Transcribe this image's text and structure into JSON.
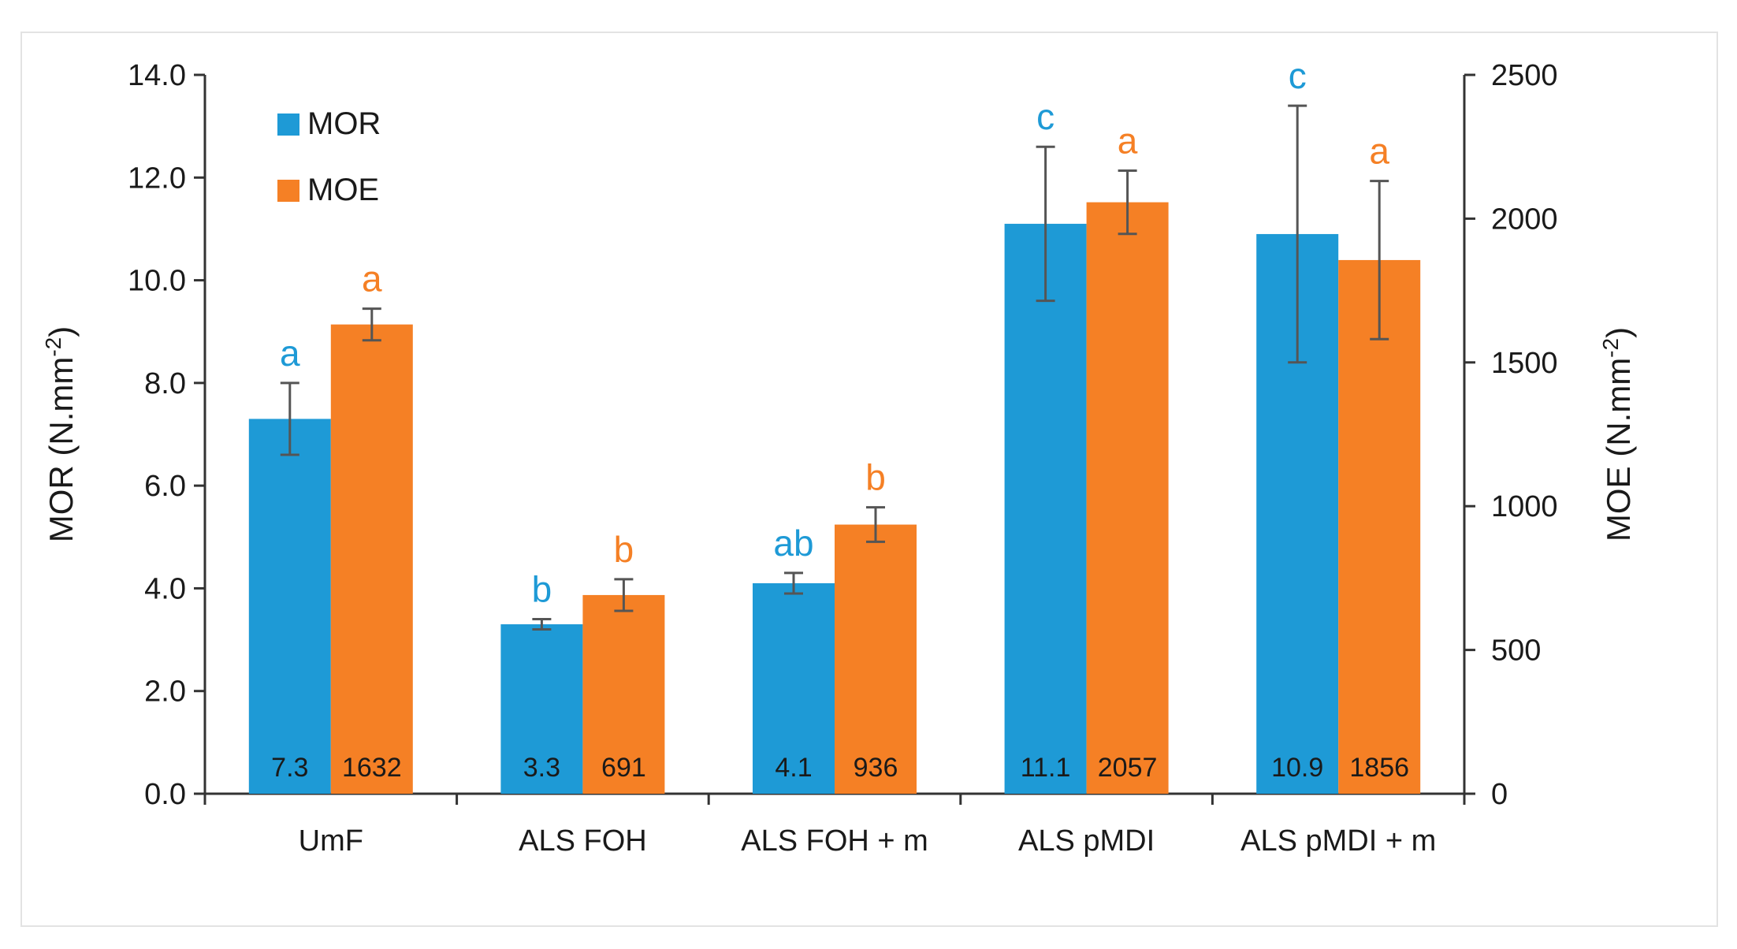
{
  "chart_data": {
    "type": "bar",
    "categories": [
      "UmF",
      "ALS FOH",
      "ALS FOH + m",
      "ALS pMDI",
      "ALS pMDI + m"
    ],
    "series": [
      {
        "name": "MOR",
        "axis": "left",
        "color": "#1e9ad6",
        "values": [
          7.3,
          3.3,
          4.1,
          11.1,
          10.9
        ],
        "value_labels": [
          "7.3",
          "3.3",
          "4.1",
          "11.1",
          "10.9"
        ],
        "error": [
          0.7,
          0.1,
          0.2,
          1.5,
          2.5
        ],
        "letters": [
          "a",
          "b",
          "ab",
          "c",
          "c"
        ]
      },
      {
        "name": "MOE",
        "axis": "right",
        "color": "#f58025",
        "values": [
          1632,
          691,
          936,
          2057,
          1856
        ],
        "value_labels": [
          "1632",
          "691",
          "936",
          "2057",
          "1856"
        ],
        "error": [
          55,
          55,
          60,
          110,
          275
        ],
        "letters": [
          "a",
          "b",
          "b",
          "a",
          "a"
        ]
      }
    ],
    "left_axis": {
      "label_main": "MOR (N.mm",
      "label_sup": "-2",
      "label_end": ")",
      "range": [
        0,
        14
      ],
      "ticks": [
        "0.0",
        "2.0",
        "4.0",
        "6.0",
        "8.0",
        "10.0",
        "12.0",
        "14.0"
      ],
      "tick_values": [
        0,
        2,
        4,
        6,
        8,
        10,
        12,
        14
      ]
    },
    "right_axis": {
      "label_main": "MOE (N.mm",
      "label_sup": "-2",
      "label_end": ")",
      "range": [
        0,
        2500
      ],
      "ticks": [
        "0",
        "500",
        "1000",
        "1500",
        "2000",
        "2500"
      ],
      "tick_values": [
        0,
        500,
        1000,
        1500,
        2000,
        2500
      ]
    },
    "legend": {
      "placement": "top-left",
      "entries": [
        "MOR",
        "MOE"
      ]
    },
    "grid": false
  }
}
